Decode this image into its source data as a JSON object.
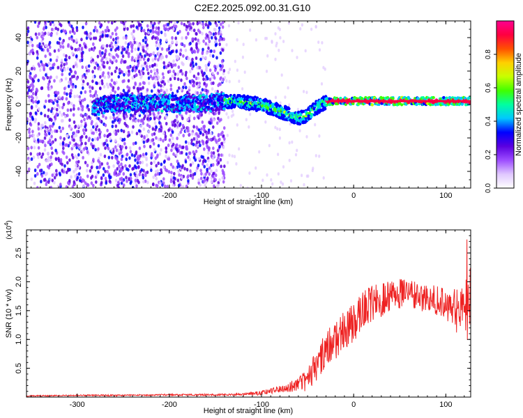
{
  "title": "C2E2.2025.092.00.31.G10",
  "chart_data": [
    {
      "type": "heatmap",
      "xlabel": "Height of straight line (km)",
      "ylabel": "Frequency (Hz)",
      "xlim": [
        -355,
        127
      ],
      "ylim": [
        -50,
        50
      ],
      "xticks": [
        -300,
        -200,
        -100,
        0,
        100
      ],
      "yticks": [
        -40,
        -20,
        0,
        20,
        40
      ],
      "colorbar": {
        "label": "Normalized spectral amplitude",
        "range": [
          0,
          1
        ],
        "ticks": [
          "0.0",
          "0.2",
          "0.4",
          "0.6",
          "0.8"
        ],
        "colormap": [
          "#ffffff",
          "#e0c8ff",
          "#9d4dff",
          "#5a00e0",
          "#0000ff",
          "#00c8ff",
          "#00ffa0",
          "#40ff00",
          "#c8ff00",
          "#ffd000",
          "#ff5000",
          "#ff0040",
          "#ff0090"
        ]
      },
      "ridge": {
        "x": [
          -283,
          -270,
          -250,
          -230,
          -210,
          -190,
          -170,
          -155,
          -142,
          -130,
          -115,
          -100,
          -90,
          -80,
          -70,
          -60,
          -52,
          -45,
          -38,
          -32,
          -25,
          -15,
          0,
          20,
          50,
          80,
          110,
          127
        ],
        "y": [
          -2,
          0,
          1,
          0,
          1,
          0,
          1,
          1,
          2,
          2,
          1,
          0,
          -2,
          -4,
          -6,
          -8,
          -7,
          -4,
          -1,
          1,
          2,
          2,
          2,
          2,
          2,
          2,
          2,
          2
        ]
      }
    },
    {
      "type": "line",
      "xlabel": "Height of straight line (km)",
      "ylabel": "SNR (10 * v/v)",
      "yunit": "(x10^4)",
      "xlim": [
        -355,
        127
      ],
      "ylim": [
        0,
        2.9
      ],
      "xticks": [
        -300,
        -200,
        -100,
        0,
        100
      ],
      "yticks": [
        "0.5",
        "1.0",
        "1.5",
        "2.0",
        "2.5"
      ],
      "color": "#ee2222",
      "trend": {
        "x": [
          -355,
          -300,
          -250,
          -200,
          -150,
          -120,
          -100,
          -80,
          -60,
          -50,
          -40,
          -30,
          -20,
          -10,
          0,
          10,
          20,
          30,
          40,
          50,
          60,
          70,
          80,
          90,
          100,
          110,
          120,
          127
        ],
        "y": [
          0.02,
          0.03,
          0.03,
          0.04,
          0.04,
          0.05,
          0.07,
          0.15,
          0.22,
          0.3,
          0.55,
          0.8,
          1.0,
          1.15,
          1.3,
          1.5,
          1.62,
          1.7,
          1.75,
          1.78,
          1.78,
          1.75,
          1.72,
          1.65,
          1.6,
          1.5,
          1.5,
          1.6
        ]
      },
      "spread": {
        "x": [
          -355,
          -150,
          -120,
          -100,
          -80,
          -60,
          -50,
          -40,
          -20,
          0,
          20,
          40,
          60,
          80,
          100,
          120,
          127
        ],
        "y": [
          0.01,
          0.015,
          0.02,
          0.04,
          0.07,
          0.12,
          0.2,
          0.3,
          0.35,
          0.35,
          0.32,
          0.3,
          0.25,
          0.25,
          0.3,
          0.45,
          0.7
        ]
      }
    }
  ]
}
